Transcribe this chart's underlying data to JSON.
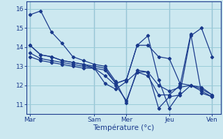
{
  "xlabel": "Température (°c)",
  "bg_color": "#cce8f0",
  "grid_color": "#99ccd8",
  "line_color": "#1a3a8c",
  "tick_labels": [
    "Mar",
    "Sam",
    "Mer",
    "Jeu",
    "Ven"
  ],
  "tick_positions": [
    0,
    6,
    9,
    13,
    17
  ],
  "ylim": [
    10.5,
    16.4
  ],
  "xlim": [
    -0.3,
    17.8
  ],
  "yticks": [
    11,
    12,
    13,
    14,
    15,
    16
  ],
  "series": [
    [
      15.7,
      15.9,
      14.8,
      14.2,
      13.5,
      13.3,
      13.1,
      13.0,
      12.2,
      11.1,
      12.8,
      12.7,
      10.8,
      11.4,
      11.5,
      12.0,
      11.7,
      11.4
    ],
    [
      14.1,
      13.6,
      13.5,
      13.3,
      13.2,
      13.1,
      13.0,
      12.9,
      12.1,
      12.3,
      14.1,
      14.1,
      13.5,
      13.4,
      12.1,
      12.0,
      11.8,
      11.5
    ],
    [
      14.1,
      13.6,
      13.5,
      13.3,
      13.2,
      13.1,
      12.9,
      12.8,
      12.1,
      12.3,
      14.1,
      14.6,
      12.3,
      10.8,
      11.6,
      14.6,
      15.0,
      13.5
    ],
    [
      13.5,
      13.3,
      13.2,
      13.1,
      13.0,
      12.9,
      12.9,
      12.1,
      11.8,
      12.2,
      12.7,
      12.7,
      12.0,
      11.7,
      11.9,
      12.0,
      11.9,
      11.5
    ],
    [
      13.7,
      13.4,
      13.3,
      13.2,
      13.1,
      13.0,
      12.9,
      12.5,
      12.0,
      11.2,
      12.7,
      12.5,
      11.5,
      11.5,
      12.0,
      14.7,
      11.6,
      11.4
    ]
  ]
}
